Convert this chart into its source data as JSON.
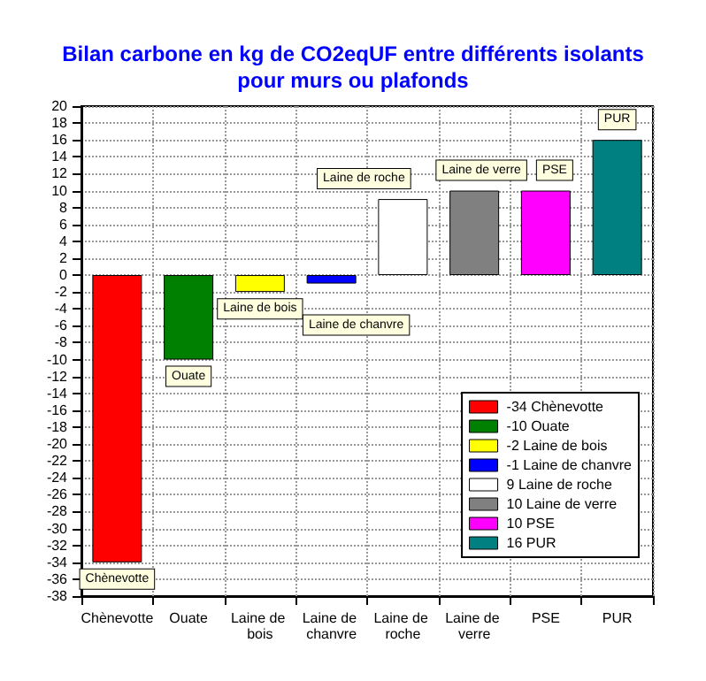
{
  "chart_data": {
    "type": "bar",
    "title": "Bilan carbone en kg de CO2eqUF entre différents isolants\npour murs ou plafonds",
    "categories": [
      "Chènevotte",
      "Ouate",
      "Laine de bois",
      "Laine de chanvre",
      "Laine de roche",
      "Laine de verre",
      "PSE",
      "PUR"
    ],
    "series": [
      {
        "name": "-34 Chènevotte",
        "color": "#ff0000",
        "values": [
          -34,
          null,
          null,
          null,
          null,
          null,
          null,
          null
        ]
      },
      {
        "name": "-10 Ouate",
        "color": "#008000",
        "values": [
          null,
          -10,
          null,
          null,
          null,
          null,
          null,
          null
        ]
      },
      {
        "name": "-2 Laine de bois",
        "color": "#ffff00",
        "values": [
          null,
          null,
          -2,
          null,
          null,
          null,
          null,
          null
        ]
      },
      {
        "name": "-1 Laine de chanvre",
        "color": "#0000ff",
        "values": [
          null,
          null,
          null,
          -1,
          null,
          null,
          null,
          null
        ]
      },
      {
        "name": "9 Laine de roche",
        "color": "#ffffff",
        "values": [
          null,
          null,
          null,
          null,
          9,
          null,
          null,
          null
        ]
      },
      {
        "name": "10 Laine de verre",
        "color": "#808080",
        "values": [
          null,
          null,
          null,
          null,
          null,
          10,
          null,
          null
        ]
      },
      {
        "name": "10 PSE",
        "color": "#ff00ff",
        "values": [
          null,
          null,
          null,
          null,
          null,
          null,
          10,
          null
        ]
      },
      {
        "name": "16 PUR",
        "color": "#008080",
        "values": [
          null,
          null,
          null,
          null,
          null,
          null,
          null,
          16
        ]
      }
    ],
    "ylim": [
      -38,
      20
    ],
    "yticks": [
      -38,
      -36,
      -34,
      -32,
      -30,
      -28,
      -26,
      -24,
      -22,
      -20,
      -18,
      -16,
      -14,
      -12,
      -10,
      -8,
      -6,
      -4,
      -2,
      0,
      2,
      4,
      6,
      8,
      10,
      12,
      14,
      16,
      18,
      20
    ],
    "grid": true,
    "legend": "bottom right"
  }
}
